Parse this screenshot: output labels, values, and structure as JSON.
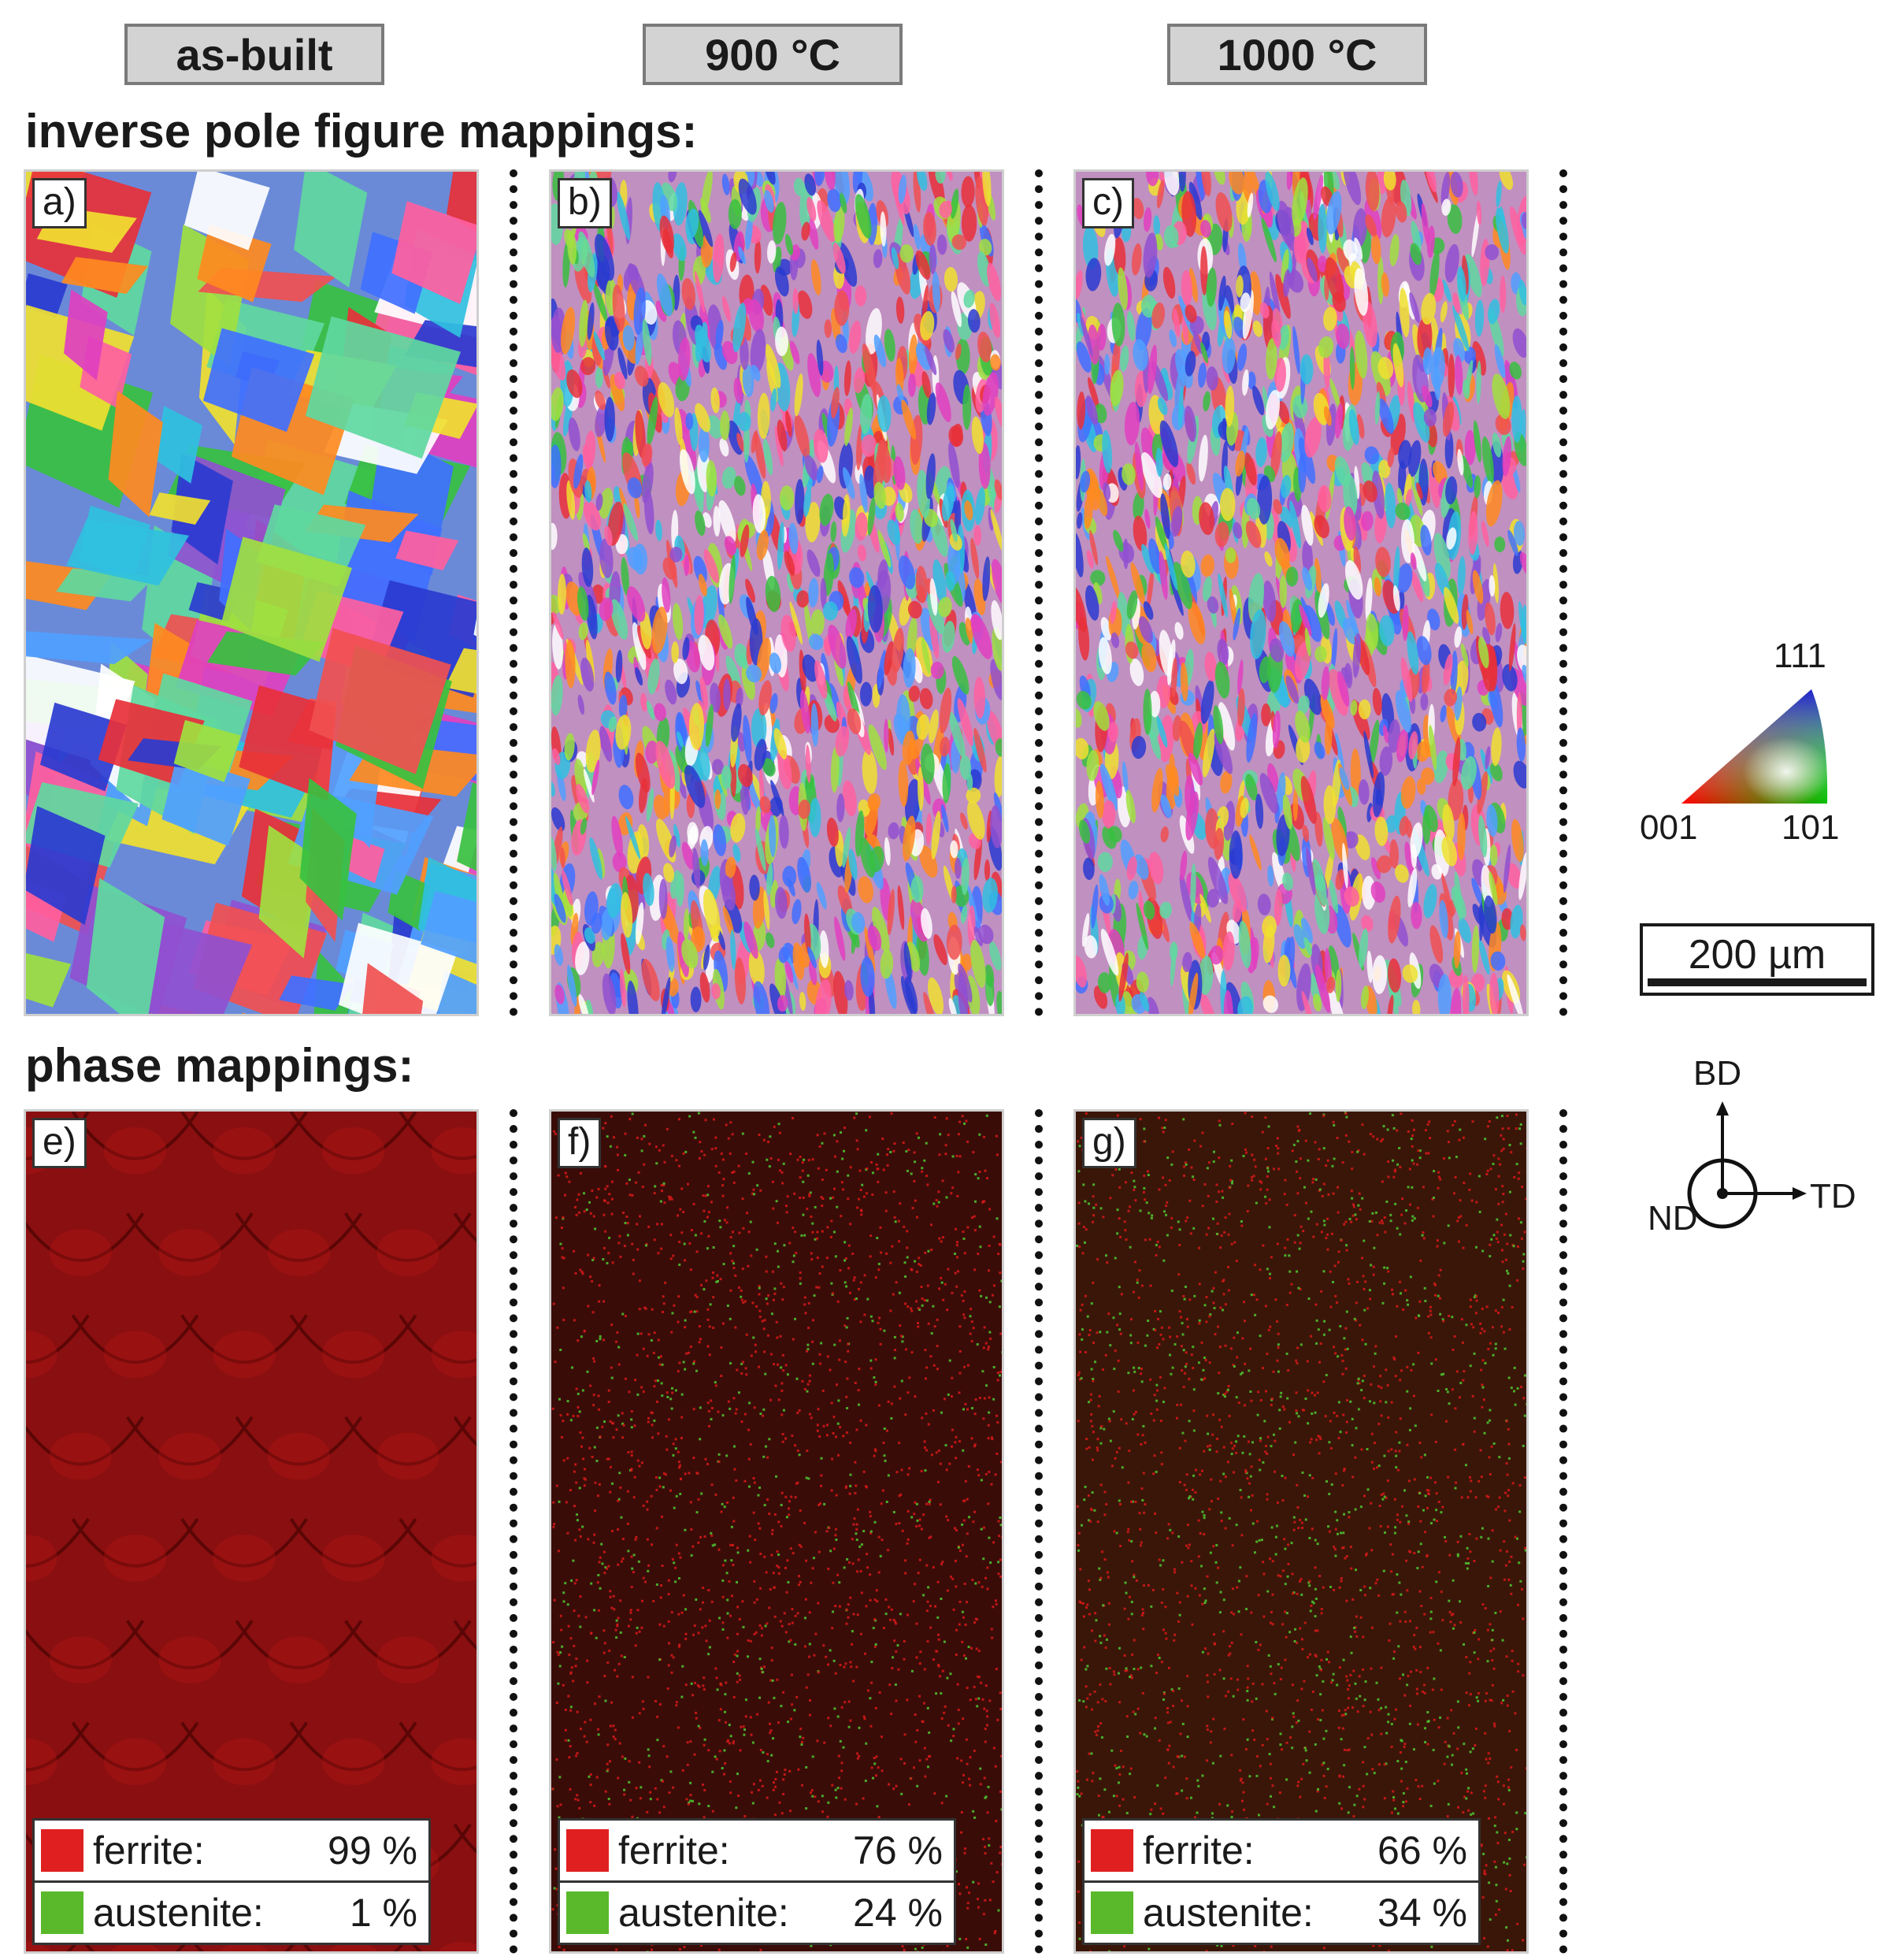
{
  "columns": {
    "as_built": "as-built",
    "c900": "900 °C",
    "c1000": "1000 °C"
  },
  "sections": {
    "ipf_title": "inverse pole figure mappings:",
    "phase_title": "phase mappings:"
  },
  "panels": {
    "a": "a)",
    "b": "b)",
    "c": "c)",
    "e": "e)",
    "f": "f)",
    "g": "g)"
  },
  "phase_legend": {
    "ferrite_label": "ferrite:",
    "austenite_label": "austenite:",
    "as_built": {
      "ferrite": "99 %",
      "austenite": "1 %",
      "ferrite_fraction": 0.99,
      "austenite_fraction": 0.01
    },
    "c900": {
      "ferrite": "76 %",
      "austenite": "24 %",
      "ferrite_fraction": 0.76,
      "austenite_fraction": 0.24
    },
    "c1000": {
      "ferrite": "66 %",
      "austenite": "34 %",
      "ferrite_fraction": 0.66,
      "austenite_fraction": 0.34
    },
    "ferrite_color": "#e02020",
    "austenite_color": "#5ab92a"
  },
  "ipf_key": {
    "top": "111",
    "left": "001",
    "right": "101"
  },
  "scale_bar": "200 µm",
  "axes": {
    "bd": "BD",
    "nd": "ND",
    "td": "TD"
  }
}
